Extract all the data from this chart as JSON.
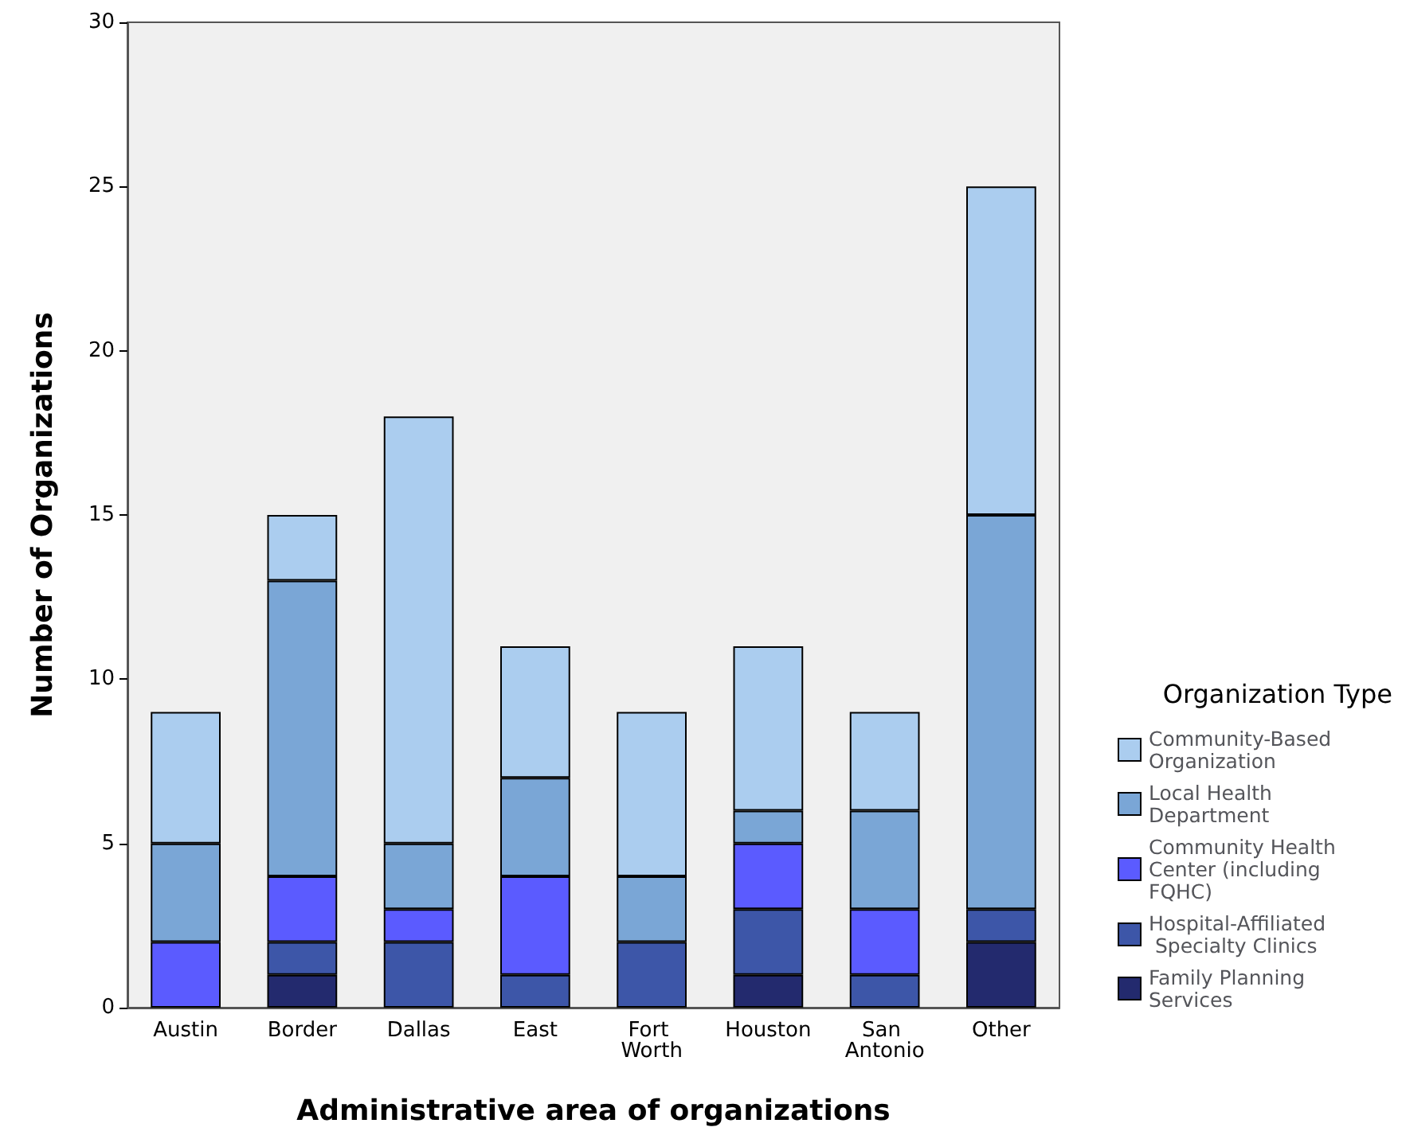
{
  "chart_data": {
    "type": "bar",
    "stacked": true,
    "xlabel": "Administrative area of organizations",
    "ylabel": "Number of Organizations",
    "legend_title": "Organization Type",
    "legend": "right",
    "grid": false,
    "categories": [
      "Austin",
      "Border",
      "Dallas",
      "East",
      "Fort Worth",
      "Houston",
      "San Antonio",
      "Other"
    ],
    "ylim": [
      0,
      30
    ],
    "yticks": [
      0,
      5,
      10,
      15,
      20,
      25,
      30
    ],
    "series": [
      {
        "name": "Family Planning Services",
        "color": "#232a6e",
        "values": [
          0,
          1,
          0,
          0,
          0,
          1,
          0,
          2
        ]
      },
      {
        "name": "Hospital-Affiliated Specialty Clinics",
        "color": "#3d56a8",
        "values": [
          0,
          1,
          2,
          1,
          2,
          2,
          1,
          1
        ]
      },
      {
        "name": "Community Health Center (including FQHC)",
        "color": "#5b5bff",
        "values": [
          2,
          2,
          1,
          3,
          0,
          2,
          2,
          0
        ]
      },
      {
        "name": "Local Health Department",
        "color": "#7aa6d6",
        "values": [
          3,
          9,
          2,
          3,
          2,
          1,
          3,
          12
        ]
      },
      {
        "name": "Community-Based Organization",
        "color": "#abcdef",
        "values": [
          4,
          2,
          13,
          4,
          5,
          5,
          3,
          10
        ]
      }
    ]
  }
}
